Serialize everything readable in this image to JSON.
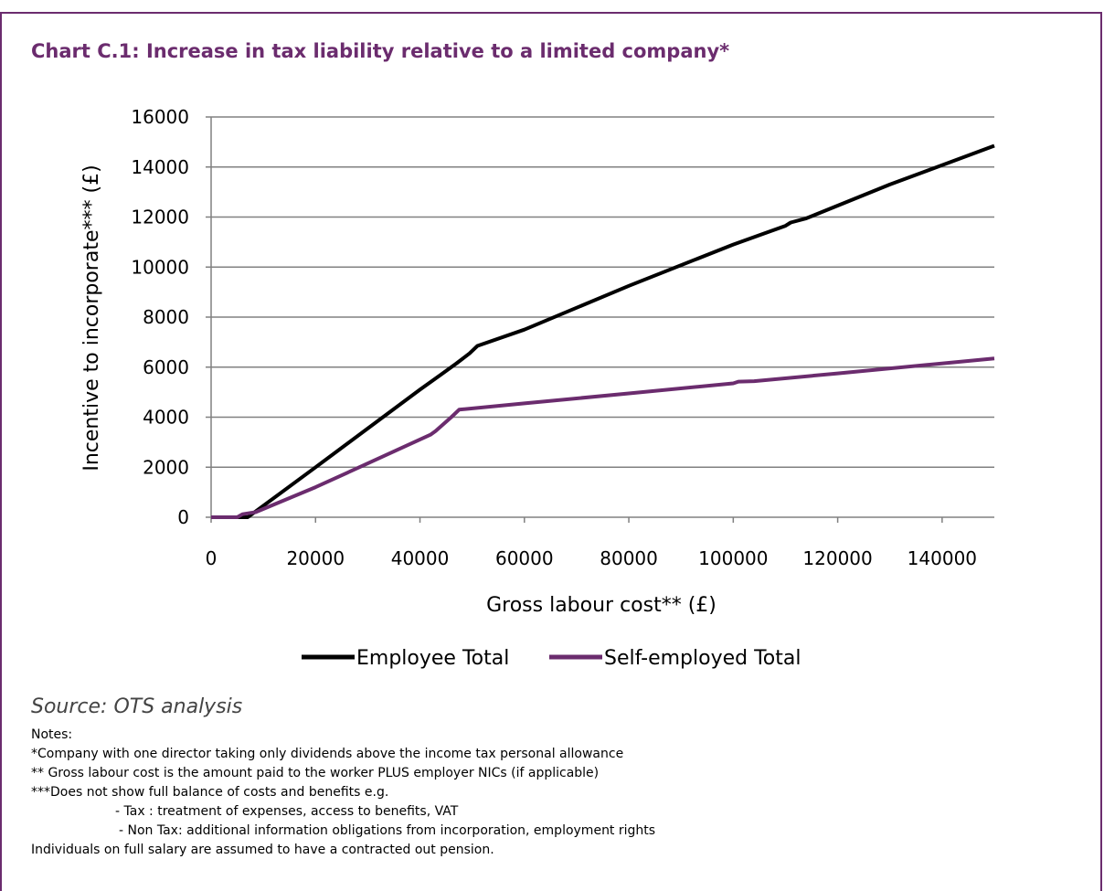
{
  "title": "Chart C.1: Increase in tax liability relative to a limited company*",
  "source": "Source: OTS analysis",
  "notes": {
    "heading": "Notes:",
    "line1": "*Company with one director taking only dividends above the income tax personal allowance",
    "line2": "** Gross labour cost is the amount paid to the worker PLUS employer NICs (if applicable)",
    "line3": "***Does not show full balance of costs and benefits e.g.",
    "line4": "- Tax : treatment of expenses, access to benefits, VAT",
    "line5": "- Non Tax: additional information obligations from incorporation, employment rights",
    "line6": "Individuals on full salary are assumed to have a contracted out pension."
  },
  "colors": {
    "accent": "#6b2c6e",
    "employee": "#000000",
    "self_employed": "#6b2c6e",
    "grid": "#808080"
  },
  "chart_data": {
    "type": "line",
    "title": "Chart C.1: Increase in tax liability relative to a limited company*",
    "xlabel": "Gross labour cost** (£)",
    "ylabel": "Incentive to incorporate*** (£)",
    "xlim": [
      0,
      150000
    ],
    "ylim": [
      0,
      16000
    ],
    "x_ticks": [
      "0",
      "20000",
      "40000",
      "60000",
      "80000",
      "100000",
      "120000",
      "140000"
    ],
    "y_ticks": [
      "0",
      "2000",
      "4000",
      "6000",
      "8000",
      "10000",
      "12000",
      "14000",
      "16000"
    ],
    "grid": "horizontal",
    "legend_position": "bottom",
    "series": [
      {
        "name": "Employee Total",
        "points": [
          [
            0,
            0
          ],
          [
            7000,
            0
          ],
          [
            8000,
            150
          ],
          [
            20000,
            2000
          ],
          [
            40000,
            5100
          ],
          [
            44000,
            5700
          ],
          [
            47000,
            6150
          ],
          [
            49500,
            6550
          ],
          [
            51000,
            6850
          ],
          [
            60000,
            7500
          ],
          [
            80000,
            9250
          ],
          [
            100000,
            10900
          ],
          [
            110000,
            11650
          ],
          [
            111000,
            11780
          ],
          [
            114000,
            11950
          ],
          [
            130000,
            13300
          ],
          [
            150000,
            14850
          ]
        ]
      },
      {
        "name": "Self-employed Total",
        "points": [
          [
            0,
            0
          ],
          [
            5000,
            0
          ],
          [
            6000,
            120
          ],
          [
            7500,
            170
          ],
          [
            8500,
            200
          ],
          [
            20000,
            1200
          ],
          [
            30000,
            2150
          ],
          [
            42000,
            3300
          ],
          [
            43000,
            3450
          ],
          [
            46000,
            4000
          ],
          [
            47500,
            4300
          ],
          [
            60000,
            4550
          ],
          [
            80000,
            4950
          ],
          [
            100000,
            5350
          ],
          [
            101000,
            5420
          ],
          [
            104000,
            5440
          ],
          [
            120000,
            5750
          ],
          [
            150000,
            6350
          ]
        ]
      }
    ]
  }
}
